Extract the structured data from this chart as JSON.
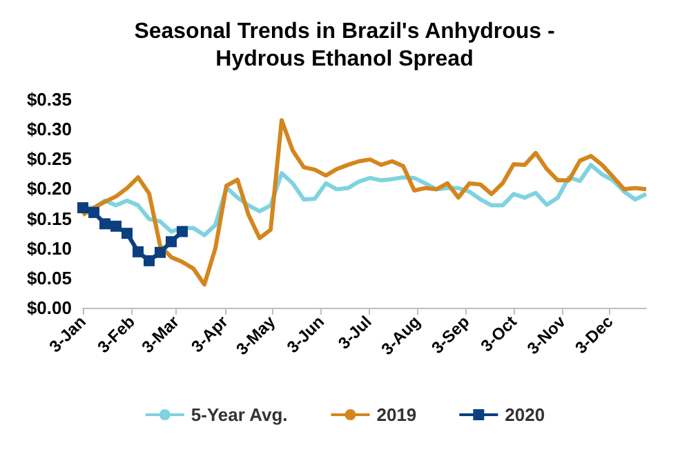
{
  "chart_data": {
    "type": "line",
    "title": "Seasonal Trends in Brazil's Anhydrous -\nHydrous Ethanol Spread",
    "x": [
      "--01-03",
      "--01-10",
      "--01-17",
      "--01-24",
      "--01-31",
      "--02-07",
      "--02-14",
      "--02-21",
      "--02-28",
      "--03-07",
      "--03-14",
      "--03-21",
      "--03-28",
      "--04-04",
      "--04-11",
      "--04-18",
      "--04-25",
      "--05-02",
      "--05-09",
      "--05-16",
      "--05-23",
      "--05-30",
      "--06-06",
      "--06-13",
      "--06-20",
      "--06-27",
      "--07-04",
      "--07-11",
      "--07-18",
      "--07-25",
      "--08-01",
      "--08-08",
      "--08-15",
      "--08-22",
      "--08-29",
      "--09-05",
      "--09-12",
      "--09-19",
      "--09-26",
      "--10-03",
      "--10-10",
      "--10-17",
      "--10-24",
      "--10-31",
      "--11-07",
      "--11-14",
      "--11-21",
      "--11-28",
      "--12-05",
      "--12-12",
      "--12-19",
      "--12-26"
    ],
    "series": [
      {
        "name": "5-Year Avg.",
        "color": "#7fd3e0",
        "marker": "none",
        "values": [
          0.168,
          0.168,
          0.18,
          0.172,
          0.18,
          0.172,
          0.149,
          0.145,
          0.128,
          0.134,
          0.134,
          0.122,
          0.139,
          0.202,
          0.185,
          0.172,
          0.162,
          0.172,
          0.226,
          0.209,
          0.182,
          0.183,
          0.209,
          0.199,
          0.201,
          0.212,
          0.218,
          0.214,
          0.216,
          0.219,
          0.218,
          0.209,
          0.199,
          0.201,
          0.201,
          0.195,
          0.182,
          0.172,
          0.172,
          0.191,
          0.185,
          0.193,
          0.173,
          0.185,
          0.219,
          0.213,
          0.24,
          0.224,
          0.214,
          0.195,
          0.182,
          0.191
        ]
      },
      {
        "name": "2019",
        "color": "#d4861e",
        "marker": "none",
        "values": [
          0.156,
          0.168,
          0.178,
          0.187,
          0.201,
          0.219,
          0.192,
          0.104,
          0.085,
          0.077,
          0.066,
          0.039,
          0.1,
          0.205,
          0.215,
          0.156,
          0.117,
          0.131,
          0.315,
          0.264,
          0.236,
          0.232,
          0.222,
          0.233,
          0.24,
          0.246,
          0.249,
          0.24,
          0.246,
          0.238,
          0.197,
          0.201,
          0.199,
          0.209,
          0.185,
          0.209,
          0.207,
          0.191,
          0.209,
          0.241,
          0.24,
          0.26,
          0.233,
          0.214,
          0.214,
          0.247,
          0.255,
          0.24,
          0.22,
          0.199,
          0.201,
          0.199
        ]
      },
      {
        "name": "2020",
        "color": "#0b3f7f",
        "marker": "square",
        "values": [
          0.168,
          0.16,
          0.141,
          0.137,
          0.125,
          0.094,
          0.079,
          0.093,
          0.111,
          0.128,
          null,
          null,
          null,
          null,
          null,
          null,
          null,
          null,
          null,
          null,
          null,
          null,
          null,
          null,
          null,
          null,
          null,
          null,
          null,
          null,
          null,
          null,
          null,
          null,
          null,
          null,
          null,
          null,
          null,
          null,
          null,
          null,
          null,
          null,
          null,
          null,
          null,
          null,
          null,
          null,
          null,
          null
        ]
      }
    ],
    "xlim": [
      "--01-03",
      "--12-26"
    ],
    "xticks": [
      {
        "value": "--01-03",
        "label": "3-Jan"
      },
      {
        "value": "--02-03",
        "label": "3-Feb"
      },
      {
        "value": "--03-03",
        "label": "3-Mar"
      },
      {
        "value": "--04-03",
        "label": "3-Apr"
      },
      {
        "value": "--05-03",
        "label": "3-May"
      },
      {
        "value": "--06-03",
        "label": "3-Jun"
      },
      {
        "value": "--07-03",
        "label": "3-Jul"
      },
      {
        "value": "--08-03",
        "label": "3-Aug"
      },
      {
        "value": "--09-03",
        "label": "3-Sep"
      },
      {
        "value": "--10-03",
        "label": "3-Oct"
      },
      {
        "value": "--11-03",
        "label": "3-Nov"
      },
      {
        "value": "--12-03",
        "label": "3-Dec"
      }
    ],
    "ylim": [
      0,
      0.35
    ],
    "yticks": [
      {
        "value": 0,
        "label": "$0.00"
      },
      {
        "value": 0.05,
        "label": "$0.05"
      },
      {
        "value": 0.1,
        "label": "$0.10"
      },
      {
        "value": 0.15,
        "label": "$0.15"
      },
      {
        "value": 0.2,
        "label": "$0.20"
      },
      {
        "value": 0.25,
        "label": "$0.25"
      },
      {
        "value": 0.3,
        "label": "$0.30"
      },
      {
        "value": 0.35,
        "label": "$0.35"
      }
    ],
    "grid": false,
    "legend": "bottom",
    "line_style": "solid"
  }
}
